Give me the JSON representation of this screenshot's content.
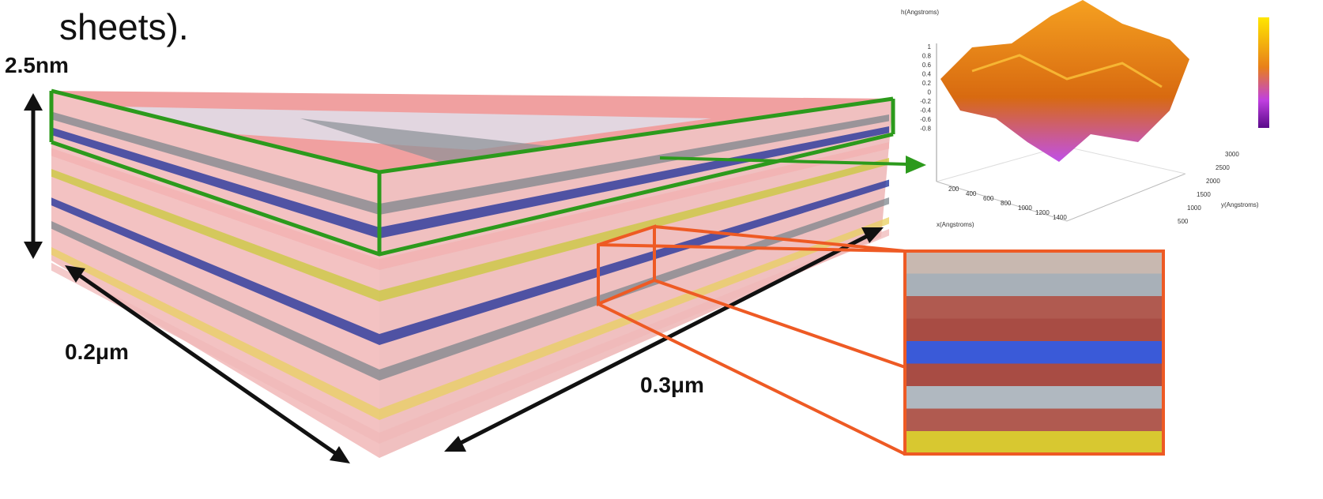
{
  "title": "sheets).",
  "labels": {
    "height": "2.5nm",
    "depth": "0.2μm",
    "width": "0.3μm"
  },
  "inset_plot": {
    "z_label": "h(Angstroms)",
    "z_ticks": [
      "1",
      "0.8",
      "0.6",
      "0.4",
      "0.2",
      "0",
      "-0.2",
      "-0.4",
      "-0.6",
      "-0.8"
    ],
    "x_label": "x(Angstroms)",
    "x_ticks": [
      "200",
      "400",
      "600",
      "800",
      "1000",
      "1200",
      "1400"
    ],
    "y_label": "y(Angstroms)",
    "y_ticks": [
      "500",
      "1000",
      "1500",
      "2000",
      "2500",
      "3000"
    ]
  }
}
